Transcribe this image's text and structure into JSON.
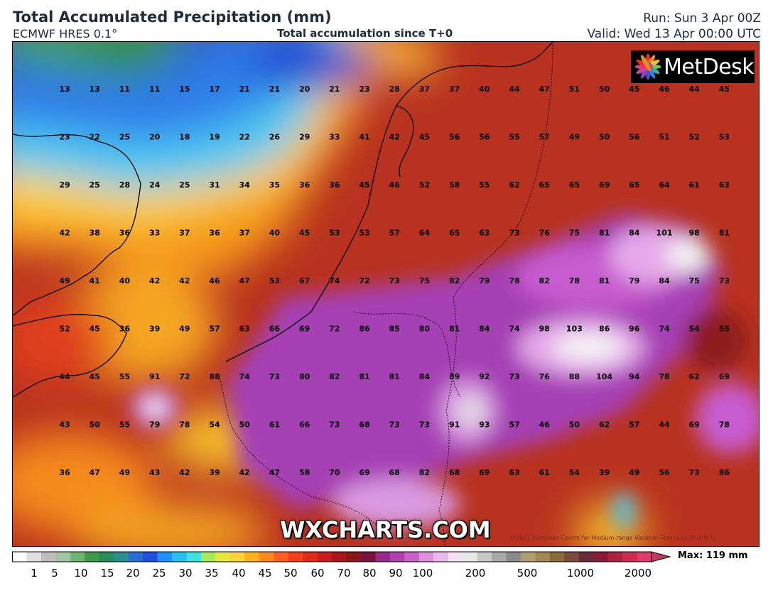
{
  "header": {
    "title": "Total Accumulated Precipitation (mm)",
    "model": "ECMWF HRES 0.1°",
    "subtitle": "Total accumulation since T+0",
    "run": "Run: Sun 3 Apr 00Z",
    "valid": "Valid: Wed 13 Apr 00:00 UTC"
  },
  "logo": {
    "text": "MetDesk",
    "icon": "metdesk-flower-icon"
  },
  "watermark": "WXCHARTS.COM",
  "copyright": "©2022 European Centre for Medium-range Weather Forecasts (ECMWF)",
  "legend": {
    "max_label": "Max: 119 mm",
    "ticks": [
      "1",
      "5",
      "10",
      "15",
      "20",
      "25",
      "30",
      "35",
      "40",
      "45",
      "50",
      "60",
      "70",
      "80",
      "90",
      "100",
      "200",
      "500",
      "1000",
      "2000"
    ]
  },
  "grid_values": [
    [
      13,
      13,
      11,
      11,
      15,
      17,
      21,
      21,
      20,
      21,
      23,
      28,
      37,
      37,
      40,
      44,
      47,
      51,
      50,
      45,
      46,
      44,
      45
    ],
    [
      23,
      22,
      25,
      20,
      18,
      19,
      22,
      26,
      29,
      33,
      41,
      42,
      45,
      56,
      56,
      55,
      57,
      49,
      50,
      56,
      51,
      52,
      53
    ],
    [
      29,
      25,
      28,
      24,
      25,
      31,
      34,
      35,
      36,
      36,
      45,
      46,
      52,
      58,
      55,
      62,
      65,
      65,
      69,
      65,
      64,
      61,
      63
    ],
    [
      42,
      38,
      36,
      33,
      37,
      36,
      37,
      40,
      45,
      53,
      53,
      57,
      64,
      65,
      63,
      73,
      76,
      75,
      81,
      84,
      101,
      98,
      81
    ],
    [
      49,
      41,
      40,
      42,
      42,
      46,
      47,
      53,
      67,
      74,
      72,
      73,
      75,
      82,
      79,
      78,
      82,
      78,
      81,
      79,
      84,
      75,
      73
    ],
    [
      52,
      45,
      36,
      39,
      49,
      57,
      63,
      66,
      69,
      72,
      86,
      85,
      80,
      81,
      84,
      74,
      98,
      103,
      86,
      96,
      74,
      54,
      55
    ],
    [
      44,
      45,
      55,
      91,
      72,
      88,
      74,
      73,
      80,
      82,
      81,
      81,
      84,
      89,
      92,
      73,
      76,
      88,
      104,
      94,
      78,
      62,
      69
    ],
    [
      43,
      50,
      55,
      79,
      78,
      54,
      50,
      61,
      66,
      73,
      68,
      73,
      73,
      91,
      93,
      57,
      46,
      50,
      62,
      57,
      44,
      69,
      78
    ],
    [
      36,
      47,
      49,
      43,
      42,
      39,
      42,
      47,
      58,
      70,
      69,
      68,
      82,
      68,
      69,
      63,
      61,
      54,
      39,
      49,
      56,
      73,
      86
    ]
  ]
}
